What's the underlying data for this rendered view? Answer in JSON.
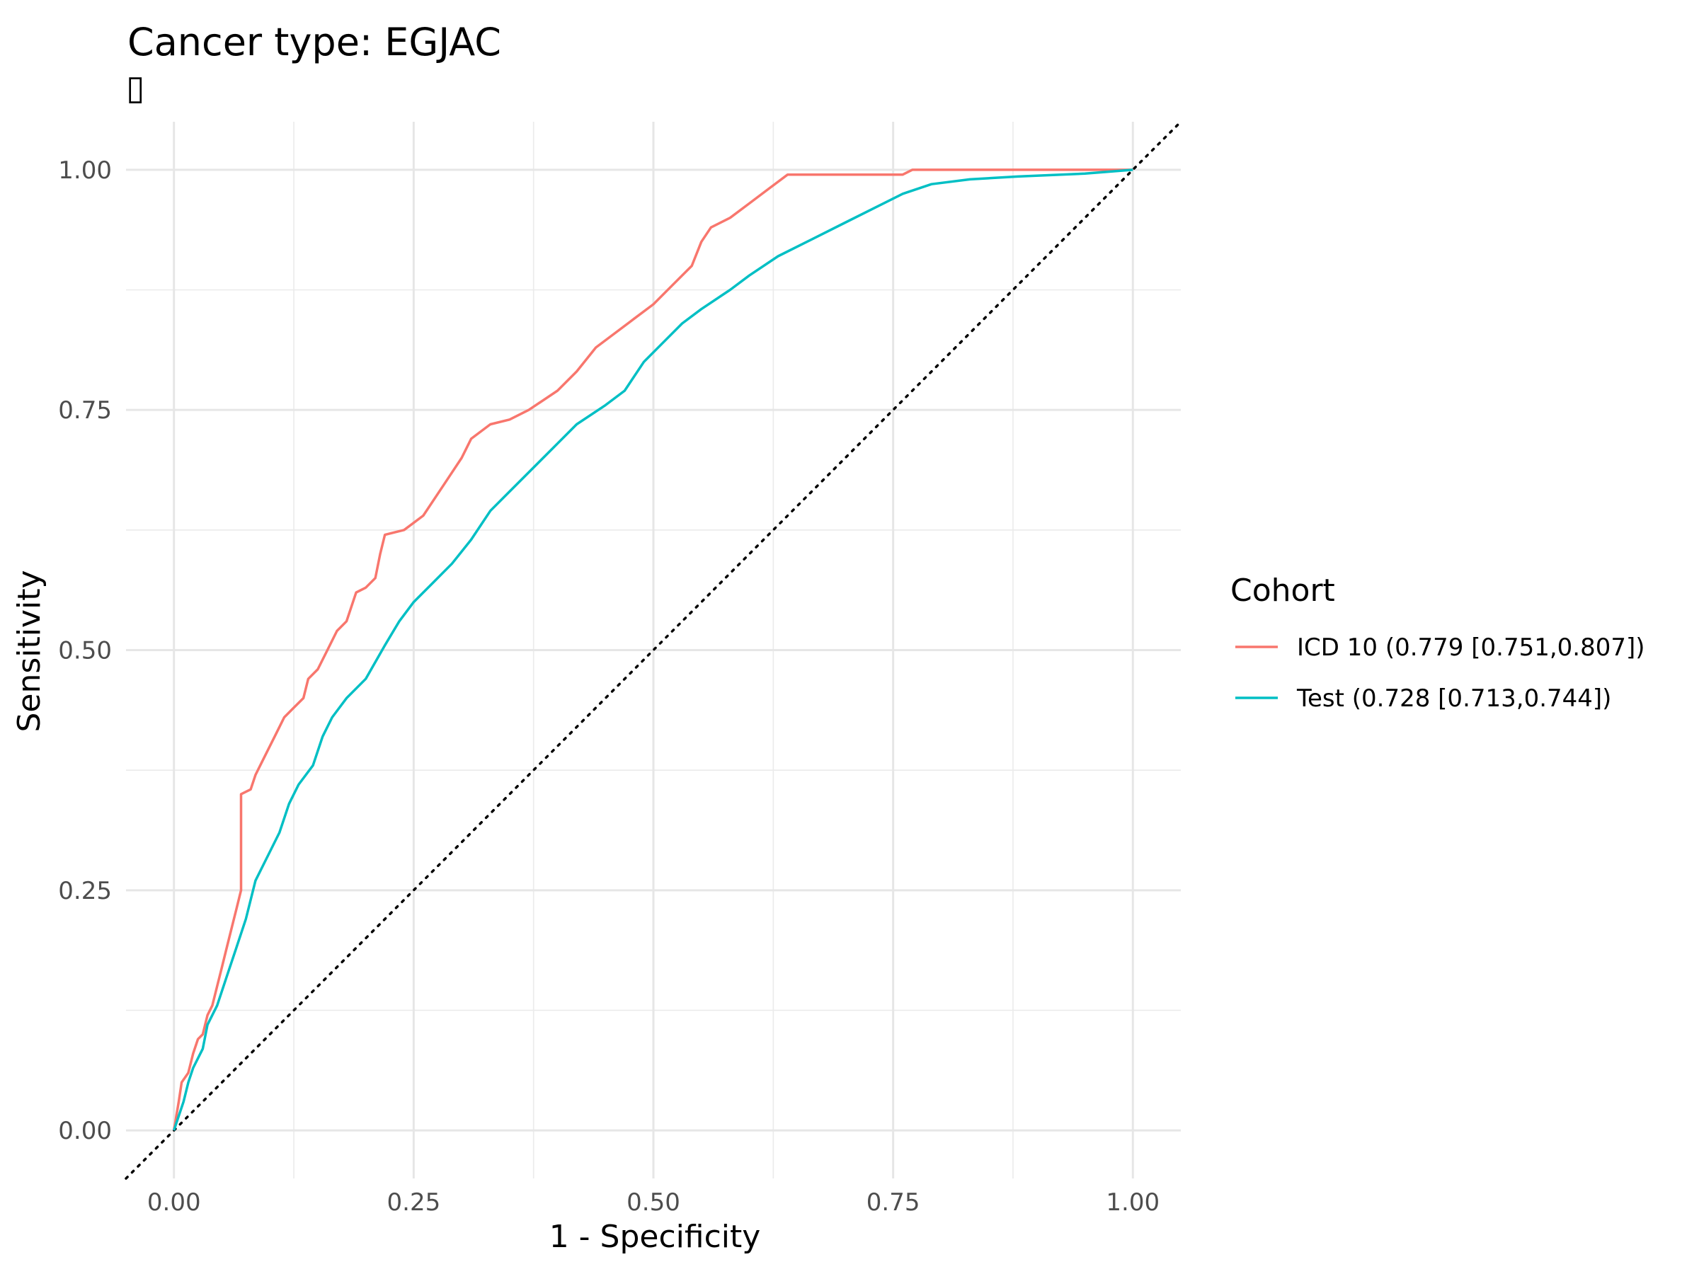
{
  "chart_data": {
    "type": "line",
    "title": "Cancer type: EGJAC",
    "subtitle": "▯",
    "xlabel": "1 - Specificity",
    "ylabel": "Sensitivity",
    "xlim": [
      -0.05,
      1.05
    ],
    "ylim": [
      -0.05,
      1.05
    ],
    "x_ticks": [
      "0.00",
      "0.25",
      "0.50",
      "0.75",
      "1.00"
    ],
    "y_ticks": [
      "0.00",
      "0.25",
      "0.50",
      "0.75",
      "1.00"
    ],
    "grid": true,
    "legend": {
      "title": "Cohort",
      "position": "right"
    },
    "reference_line": {
      "style": "dotted",
      "color": "#000000",
      "from": [
        -0.05,
        -0.05
      ],
      "to": [
        1.05,
        1.05
      ]
    },
    "series": [
      {
        "name": "ICD 10 (0.779 [0.751,0.807])",
        "color": "#F8766D",
        "points": [
          [
            0.0,
            0.0
          ],
          [
            0.005,
            0.03
          ],
          [
            0.008,
            0.05
          ],
          [
            0.015,
            0.06
          ],
          [
            0.02,
            0.08
          ],
          [
            0.025,
            0.095
          ],
          [
            0.03,
            0.1
          ],
          [
            0.035,
            0.12
          ],
          [
            0.04,
            0.13
          ],
          [
            0.045,
            0.15
          ],
          [
            0.05,
            0.17
          ],
          [
            0.055,
            0.19
          ],
          [
            0.06,
            0.21
          ],
          [
            0.065,
            0.23
          ],
          [
            0.07,
            0.25
          ],
          [
            0.07,
            0.35
          ],
          [
            0.08,
            0.355
          ],
          [
            0.085,
            0.37
          ],
          [
            0.095,
            0.39
          ],
          [
            0.105,
            0.41
          ],
          [
            0.115,
            0.43
          ],
          [
            0.125,
            0.44
          ],
          [
            0.135,
            0.45
          ],
          [
            0.14,
            0.47
          ],
          [
            0.15,
            0.48
          ],
          [
            0.16,
            0.5
          ],
          [
            0.17,
            0.52
          ],
          [
            0.18,
            0.53
          ],
          [
            0.19,
            0.56
          ],
          [
            0.2,
            0.565
          ],
          [
            0.21,
            0.575
          ],
          [
            0.215,
            0.6
          ],
          [
            0.22,
            0.62
          ],
          [
            0.24,
            0.625
          ],
          [
            0.26,
            0.64
          ],
          [
            0.28,
            0.67
          ],
          [
            0.3,
            0.7
          ],
          [
            0.31,
            0.72
          ],
          [
            0.33,
            0.735
          ],
          [
            0.35,
            0.74
          ],
          [
            0.37,
            0.75
          ],
          [
            0.4,
            0.77
          ],
          [
            0.42,
            0.79
          ],
          [
            0.44,
            0.815
          ],
          [
            0.46,
            0.83
          ],
          [
            0.48,
            0.845
          ],
          [
            0.5,
            0.86
          ],
          [
            0.52,
            0.88
          ],
          [
            0.54,
            0.9
          ],
          [
            0.55,
            0.925
          ],
          [
            0.56,
            0.94
          ],
          [
            0.58,
            0.95
          ],
          [
            0.6,
            0.965
          ],
          [
            0.62,
            0.98
          ],
          [
            0.64,
            0.995
          ],
          [
            0.76,
            0.995
          ],
          [
            0.77,
            1.0
          ],
          [
            1.0,
            1.0
          ]
        ]
      },
      {
        "name": "Test (0.728 [0.713,0.744])",
        "color": "#00BFC4",
        "points": [
          [
            0.0,
            0.0
          ],
          [
            0.01,
            0.03
          ],
          [
            0.015,
            0.05
          ],
          [
            0.02,
            0.065
          ],
          [
            0.03,
            0.085
          ],
          [
            0.035,
            0.11
          ],
          [
            0.045,
            0.13
          ],
          [
            0.055,
            0.16
          ],
          [
            0.065,
            0.19
          ],
          [
            0.075,
            0.22
          ],
          [
            0.085,
            0.26
          ],
          [
            0.095,
            0.28
          ],
          [
            0.11,
            0.31
          ],
          [
            0.12,
            0.34
          ],
          [
            0.13,
            0.36
          ],
          [
            0.145,
            0.38
          ],
          [
            0.155,
            0.41
          ],
          [
            0.165,
            0.43
          ],
          [
            0.18,
            0.45
          ],
          [
            0.2,
            0.47
          ],
          [
            0.22,
            0.505
          ],
          [
            0.235,
            0.53
          ],
          [
            0.25,
            0.55
          ],
          [
            0.27,
            0.57
          ],
          [
            0.29,
            0.59
          ],
          [
            0.31,
            0.615
          ],
          [
            0.33,
            0.645
          ],
          [
            0.35,
            0.665
          ],
          [
            0.37,
            0.685
          ],
          [
            0.4,
            0.715
          ],
          [
            0.42,
            0.735
          ],
          [
            0.45,
            0.755
          ],
          [
            0.47,
            0.77
          ],
          [
            0.49,
            0.8
          ],
          [
            0.51,
            0.82
          ],
          [
            0.53,
            0.84
          ],
          [
            0.55,
            0.855
          ],
          [
            0.58,
            0.875
          ],
          [
            0.6,
            0.89
          ],
          [
            0.63,
            0.91
          ],
          [
            0.66,
            0.925
          ],
          [
            0.7,
            0.945
          ],
          [
            0.73,
            0.96
          ],
          [
            0.76,
            0.975
          ],
          [
            0.79,
            0.985
          ],
          [
            0.83,
            0.99
          ],
          [
            0.88,
            0.993
          ],
          [
            0.95,
            0.996
          ],
          [
            1.0,
            1.0
          ]
        ]
      }
    ]
  }
}
